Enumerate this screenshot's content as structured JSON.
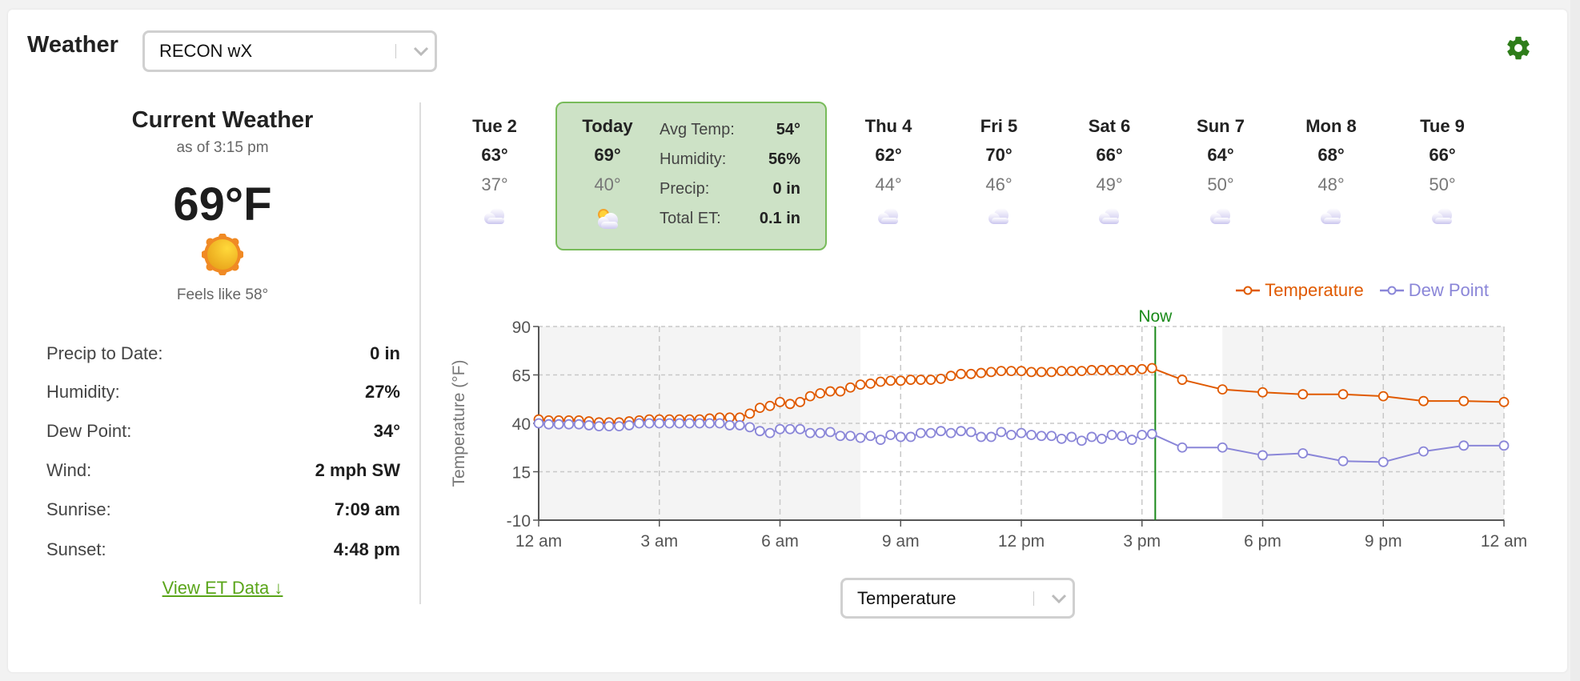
{
  "header": {
    "title": "Weather",
    "station_select": "RECON wX",
    "settings_icon": "gear-icon"
  },
  "current": {
    "title": "Current Weather",
    "as_of": "as of 3:15 pm",
    "temp": "69°F",
    "icon": "sun-icon",
    "feels_like": "Feels like 58°",
    "rows": [
      {
        "label": "Precip to Date:",
        "value": "0 in"
      },
      {
        "label": "Humidity:",
        "value": "27%"
      },
      {
        "label": "Dew Point:",
        "value": "34°"
      },
      {
        "label": "Wind:",
        "value": "2 mph SW"
      },
      {
        "label": "Sunrise:",
        "value": "7:09 am"
      },
      {
        "label": "Sunset:",
        "value": "4:48 pm"
      }
    ],
    "et_link": "View ET Data ↓"
  },
  "forecast": [
    {
      "day": "Tue 2",
      "hi": "63°",
      "lo": "37°",
      "icon": "cloud-icon"
    },
    {
      "day": "Today",
      "hi": "69°",
      "lo": "40°",
      "icon": "partly-cloudy-icon",
      "selected": true
    },
    {
      "day": "Thu 4",
      "hi": "62°",
      "lo": "44°",
      "icon": "cloud-icon"
    },
    {
      "day": "Fri 5",
      "hi": "70°",
      "lo": "46°",
      "icon": "cloud-icon"
    },
    {
      "day": "Sat 6",
      "hi": "66°",
      "lo": "49°",
      "icon": "cloud-icon"
    },
    {
      "day": "Sun 7",
      "hi": "64°",
      "lo": "50°",
      "icon": "cloud-icon"
    },
    {
      "day": "Mon 8",
      "hi": "68°",
      "lo": "48°",
      "icon": "cloud-icon"
    },
    {
      "day": "Tue 9",
      "hi": "66°",
      "lo": "50°",
      "icon": "cloud-icon"
    }
  ],
  "today_stats": [
    {
      "label": "Avg Temp:",
      "value": "54°"
    },
    {
      "label": "Humidity:",
      "value": "56%"
    },
    {
      "label": "Precip:",
      "value": "0 in"
    },
    {
      "label": "Total ET:",
      "value": "0.1 in"
    }
  ],
  "chart_select": "Temperature",
  "chart_data": {
    "type": "line",
    "ylabel": "Temperature (°F)",
    "ylim": [
      -10,
      90
    ],
    "yticks": [
      "90",
      "65",
      "40",
      "15",
      "-10"
    ],
    "ytick_values": [
      90,
      65,
      40,
      15,
      -10
    ],
    "xlim_hours": [
      0,
      24
    ],
    "xticks": [
      "12 am",
      "3 am",
      "6 am",
      "9 am",
      "12 pm",
      "3 pm",
      "6 pm",
      "9 pm",
      "12 am"
    ],
    "xtick_hours": [
      0,
      3,
      6,
      9,
      12,
      15,
      18,
      21,
      24
    ],
    "grid": true,
    "legend_position": "top-right",
    "now_label": "Now",
    "now_hour": 15.33,
    "night_shading_hours": [
      [
        0,
        8
      ],
      [
        17,
        24
      ]
    ],
    "colors": {
      "Temperature": "#e05a00",
      "Dew Point": "#8a86d8",
      "now": "#1a8a1a"
    },
    "series": [
      {
        "name": "Temperature",
        "observed_15min": [
          42,
          41.5,
          41.5,
          41.5,
          41.5,
          41,
          40.5,
          40.5,
          40.5,
          41,
          41.5,
          42,
          42,
          42,
          42,
          42,
          42,
          42.5,
          43,
          43,
          43,
          45,
          48,
          49,
          51,
          50,
          51,
          54,
          55.5,
          56.5,
          56.5,
          58.5,
          60,
          60.5,
          61.5,
          62,
          62,
          62.5,
          62.5,
          62.5,
          63,
          64.5,
          65.5,
          65.5,
          66,
          66.5,
          67,
          67,
          67,
          66.5,
          66.5,
          66.5,
          67,
          67,
          67,
          67.5,
          67.5,
          67.5,
          67.5,
          67.5,
          68,
          68.5
        ],
        "forecast_hours": [
          16,
          17,
          18,
          19,
          20,
          21,
          22,
          23,
          24
        ],
        "forecast": [
          62.5,
          57.5,
          56,
          55,
          55,
          54,
          51.5,
          51.5,
          51
        ]
      },
      {
        "name": "Dew Point",
        "observed_15min": [
          40,
          39.5,
          39.5,
          39.5,
          39.5,
          39,
          38.5,
          38.5,
          38.5,
          39,
          40,
          40,
          40,
          40,
          40,
          40,
          40,
          40,
          40,
          39,
          39,
          38,
          36,
          35,
          37,
          37,
          37,
          35,
          35,
          35.5,
          33.5,
          33.5,
          32.5,
          33.5,
          31.5,
          34,
          33,
          33,
          35,
          35,
          36,
          35,
          36,
          35.5,
          33,
          33,
          35.5,
          34,
          35,
          34,
          33.5,
          33.5,
          32,
          33,
          31,
          33,
          32,
          34,
          33.5,
          31.5,
          34,
          34.5
        ],
        "forecast_hours": [
          16,
          17,
          18,
          19,
          20,
          21,
          22,
          23,
          24
        ],
        "forecast": [
          27.5,
          27.5,
          23.5,
          24.5,
          20.5,
          20,
          25.5,
          28.5,
          28.5
        ]
      }
    ]
  }
}
